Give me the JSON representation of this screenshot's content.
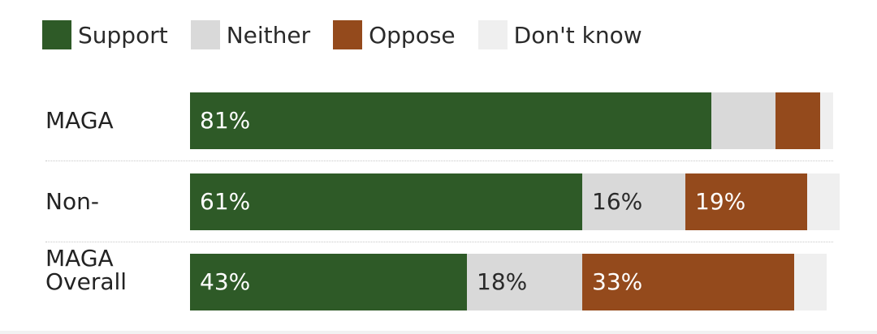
{
  "chart_data": {
    "type": "bar",
    "orientation": "horizontal",
    "stacked": true,
    "legend_position": "top",
    "categories": [
      "MAGA",
      "Non-MAGA",
      "Overall"
    ],
    "series": [
      {
        "name": "Support",
        "color": "#2e5a27",
        "label_color": "#ffffff",
        "values": [
          81,
          61,
          43
        ],
        "labels": [
          "81%",
          "61%",
          "43%"
        ]
      },
      {
        "name": "Neither",
        "color": "#d9d9d9",
        "label_color": "#2a2a2a",
        "values": [
          10,
          16,
          18
        ],
        "labels": [
          "",
          "16%",
          "18%"
        ]
      },
      {
        "name": "Oppose",
        "color": "#944a1c",
        "label_color": "#ffffff",
        "values": [
          7,
          19,
          33
        ],
        "labels": [
          "",
          "19%",
          "33%"
        ]
      },
      {
        "name": "Don't know",
        "color": "#efefef",
        "label_color": "#2a2a2a",
        "values": [
          2,
          5,
          5
        ],
        "labels": [
          "",
          "",
          ""
        ]
      }
    ],
    "xlim": [
      0,
      100
    ]
  }
}
